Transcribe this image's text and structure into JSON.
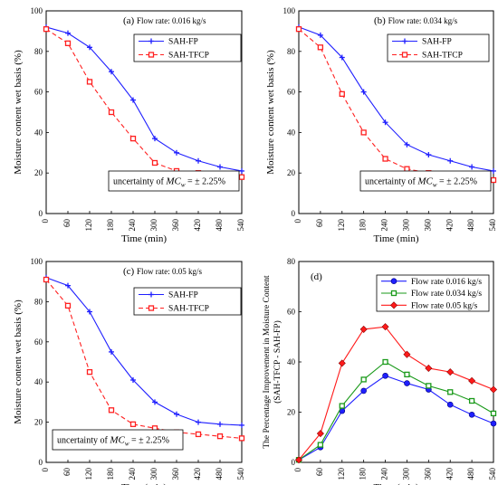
{
  "chart_data": [
    {
      "type": "line",
      "panel_label": "(a)",
      "title": "Flow rate: 0.016 kg/s",
      "xlabel": "Time (min)",
      "ylabel": "Moisture content wet basis (%)",
      "x": [
        0,
        60,
        120,
        180,
        240,
        300,
        360,
        420,
        480,
        540
      ],
      "xlim": [
        0,
        540
      ],
      "ylim": [
        0,
        100
      ],
      "xticks": [
        0,
        60,
        120,
        180,
        240,
        300,
        360,
        420,
        480,
        540
      ],
      "yticks": [
        0,
        20,
        40,
        60,
        80,
        100
      ],
      "legend_position": "top-right",
      "series": [
        {
          "name": "SAH-FP",
          "color": "#1f1fff",
          "marker": "plus",
          "dash": "solid",
          "values": [
            92,
            89,
            82,
            70,
            56,
            37,
            30,
            26,
            23,
            21
          ]
        },
        {
          "name": "SAH-TFCP",
          "color": "#ff2020",
          "marker": "square",
          "dash": "dashed",
          "values": [
            91,
            84,
            65,
            50,
            37,
            25,
            21,
            20,
            18.5,
            18
          ]
        }
      ],
      "note": {
        "prefix": "uncertainty of ",
        "symbol": "MC",
        "subscript": "w",
        "suffix": " = ± 2.25%"
      }
    },
    {
      "type": "line",
      "panel_label": "(b)",
      "title": "Flow rate: 0.034 kg/s",
      "xlabel": "Time (min)",
      "ylabel": "Moisture content wet basis (%)",
      "x": [
        0,
        60,
        120,
        180,
        240,
        300,
        360,
        420,
        480,
        540
      ],
      "xlim": [
        0,
        540
      ],
      "ylim": [
        0,
        100
      ],
      "xticks": [
        0,
        60,
        120,
        180,
        240,
        300,
        360,
        420,
        480,
        540
      ],
      "yticks": [
        0,
        20,
        40,
        60,
        80,
        100
      ],
      "legend_position": "top-right",
      "series": [
        {
          "name": "SAH-FP",
          "color": "#1f1fff",
          "marker": "plus",
          "dash": "solid",
          "values": [
            92,
            88,
            77,
            60,
            45,
            34,
            29,
            26,
            23,
            21
          ]
        },
        {
          "name": "SAH-TFCP",
          "color": "#ff2020",
          "marker": "square",
          "dash": "dashed",
          "values": [
            91,
            82,
            59,
            40,
            27,
            22,
            20,
            18.5,
            17,
            16.5
          ]
        }
      ],
      "note": {
        "prefix": "uncertainty of ",
        "symbol": "MC",
        "subscript": "w",
        "suffix": " = ± 2.25%"
      }
    },
    {
      "type": "line",
      "panel_label": "(c)",
      "title": "Flow rate: 0.05 kg/s",
      "xlabel": "Time (min)",
      "ylabel": "Moisture content wet basis (%)",
      "x": [
        0,
        60,
        120,
        180,
        240,
        300,
        360,
        420,
        480,
        540
      ],
      "xlim": [
        0,
        540
      ],
      "ylim": [
        0,
        100
      ],
      "xticks": [
        0,
        60,
        120,
        180,
        240,
        300,
        360,
        420,
        480,
        540
      ],
      "yticks": [
        0,
        20,
        40,
        60,
        80,
        100
      ],
      "legend_position": "top-right",
      "series": [
        {
          "name": "SAH-FP",
          "color": "#1f1fff",
          "marker": "plus",
          "dash": "solid",
          "values": [
            92,
            88,
            75,
            55,
            41,
            30,
            24,
            20,
            19,
            18.5
          ]
        },
        {
          "name": "SAH-TFCP",
          "color": "#ff2020",
          "marker": "square",
          "dash": "dashed",
          "values": [
            91,
            78,
            45,
            26,
            19,
            17,
            15,
            14,
            13,
            12
          ]
        }
      ],
      "note": {
        "prefix": "uncertainty of ",
        "symbol": "MC",
        "subscript": "w",
        "suffix": " = ± 2.25%"
      }
    },
    {
      "type": "line",
      "panel_label": "(d)",
      "title": "",
      "xlabel": "Time (min)",
      "ylabel": "The Percentage Improvement in Moisture Content",
      "ylabel2": "(SAH-TFCP - SAH-FP)",
      "x": [
        0,
        60,
        120,
        180,
        240,
        300,
        360,
        420,
        480,
        540
      ],
      "xlim": [
        0,
        540
      ],
      "ylim": [
        0,
        80
      ],
      "xticks": [
        0,
        60,
        120,
        180,
        240,
        300,
        360,
        420,
        480,
        540
      ],
      "yticks": [
        0,
        20,
        40,
        60,
        80
      ],
      "legend_position": "top-right",
      "series": [
        {
          "name": "Flow rate 0.016 kg/s",
          "color": "#1f1fff",
          "marker": "circle",
          "dash": "solid",
          "values": [
            1,
            6,
            20.5,
            28.5,
            34.5,
            31.5,
            29,
            23,
            19,
            15.5
          ]
        },
        {
          "name": "Flow rate 0.034 kg/s",
          "color": "#1a9a1a",
          "marker": "square",
          "dash": "solid",
          "values": [
            1,
            7,
            22.5,
            33,
            40,
            35,
            30.5,
            28,
            24.5,
            19.5
          ]
        },
        {
          "name": "Flow rate 0.05 kg/s",
          "color": "#ff1a1a",
          "marker": "diamond",
          "dash": "solid",
          "values": [
            1,
            11.5,
            39.5,
            53,
            54,
            43,
            37.5,
            36,
            32.5,
            29
          ]
        }
      ]
    }
  ]
}
